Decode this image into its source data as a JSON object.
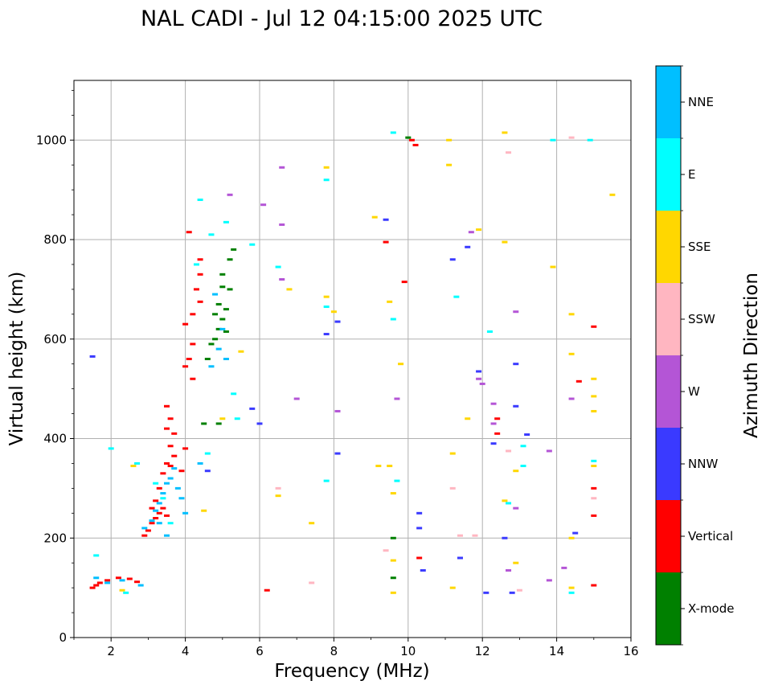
{
  "chart_data": {
    "type": "scatter",
    "title": "NAL CADI - Jul 12 04:15:00 2025 UTC",
    "xlabel": "Frequency (MHz)",
    "ylabel": "Virtual height (km)",
    "xlim": [
      1,
      16
    ],
    "ylim": [
      0,
      1120
    ],
    "xticks": [
      2,
      4,
      6,
      8,
      10,
      12,
      14,
      16
    ],
    "yticks": [
      0,
      200,
      400,
      600,
      800,
      1000
    ],
    "grid": true,
    "colorbar": {
      "label": "Azimuth Direction",
      "categories": [
        {
          "name": "X-mode",
          "color": "#008000"
        },
        {
          "name": "Vertical",
          "color": "#ff0000"
        },
        {
          "name": "NNW",
          "color": "#3a3aff"
        },
        {
          "name": "W",
          "color": "#b455d6"
        },
        {
          "name": "SSW",
          "color": "#ffb6c1"
        },
        {
          "name": "SSE",
          "color": "#ffd700"
        },
        {
          "name": "E",
          "color": "#00ffff"
        },
        {
          "name": "NNE",
          "color": "#00bfff"
        }
      ]
    },
    "series": [
      {
        "name": "Vertical",
        "points": [
          [
            1.5,
            100
          ],
          [
            1.6,
            105
          ],
          [
            1.7,
            110
          ],
          [
            1.9,
            115
          ],
          [
            2.2,
            120
          ],
          [
            2.5,
            118
          ],
          [
            2.7,
            112
          ],
          [
            2.9,
            205
          ],
          [
            3.0,
            215
          ],
          [
            3.1,
            230
          ],
          [
            3.2,
            240
          ],
          [
            3.3,
            250
          ],
          [
            3.4,
            260
          ],
          [
            3.5,
            245
          ],
          [
            3.1,
            260
          ],
          [
            3.2,
            275
          ],
          [
            3.3,
            300
          ],
          [
            3.4,
            330
          ],
          [
            3.5,
            350
          ],
          [
            3.6,
            345
          ],
          [
            3.7,
            365
          ],
          [
            3.6,
            385
          ],
          [
            3.7,
            410
          ],
          [
            3.5,
            420
          ],
          [
            3.6,
            440
          ],
          [
            3.5,
            465
          ],
          [
            3.9,
            335
          ],
          [
            4.0,
            380
          ],
          [
            4.2,
            520
          ],
          [
            4.0,
            545
          ],
          [
            4.1,
            560
          ],
          [
            4.2,
            590
          ],
          [
            4.0,
            630
          ],
          [
            4.2,
            650
          ],
          [
            4.4,
            675
          ],
          [
            4.3,
            700
          ],
          [
            4.4,
            730
          ],
          [
            4.4,
            760
          ],
          [
            4.1,
            815
          ],
          [
            6.2,
            95
          ],
          [
            9.4,
            795
          ],
          [
            9.9,
            715
          ],
          [
            10.1,
            1000
          ],
          [
            10.2,
            990
          ],
          [
            14.6,
            515
          ],
          [
            15.0,
            625
          ],
          [
            15.0,
            300
          ],
          [
            15.0,
            245
          ],
          [
            15.0,
            105
          ],
          [
            12.4,
            410
          ],
          [
            12.4,
            440
          ],
          [
            10.3,
            160
          ]
        ]
      },
      {
        "name": "X-mode",
        "points": [
          [
            4.5,
            430
          ],
          [
            4.9,
            430
          ],
          [
            4.6,
            560
          ],
          [
            4.7,
            590
          ],
          [
            4.8,
            600
          ],
          [
            4.9,
            620
          ],
          [
            5.0,
            640
          ],
          [
            5.1,
            660
          ],
          [
            5.2,
            700
          ],
          [
            5.0,
            705
          ],
          [
            5.2,
            760
          ],
          [
            5.3,
            780
          ],
          [
            4.8,
            650
          ],
          [
            4.9,
            670
          ],
          [
            5.1,
            615
          ],
          [
            10.0,
            1005
          ],
          [
            9.6,
            200
          ],
          [
            9.6,
            120
          ],
          [
            5.0,
            730
          ]
        ]
      },
      {
        "name": "NNW",
        "points": [
          [
            1.5,
            565
          ],
          [
            4.6,
            335
          ],
          [
            5.8,
            460
          ],
          [
            6.0,
            430
          ],
          [
            7.8,
            610
          ],
          [
            8.1,
            635
          ],
          [
            8.1,
            370
          ],
          [
            9.4,
            840
          ],
          [
            10.3,
            250
          ],
          [
            10.3,
            220
          ],
          [
            10.4,
            135
          ],
          [
            11.2,
            760
          ],
          [
            11.6,
            785
          ],
          [
            11.9,
            535
          ],
          [
            12.3,
            390
          ],
          [
            12.6,
            200
          ],
          [
            12.9,
            550
          ],
          [
            12.9,
            465
          ],
          [
            13.2,
            408
          ],
          [
            12.1,
            90
          ],
          [
            12.8,
            90
          ],
          [
            11.4,
            160
          ],
          [
            14.5,
            210
          ]
        ]
      },
      {
        "name": "W",
        "points": [
          [
            5.2,
            890
          ],
          [
            6.6,
            945
          ],
          [
            6.1,
            870
          ],
          [
            6.6,
            830
          ],
          [
            7.0,
            480
          ],
          [
            8.1,
            455
          ],
          [
            9.7,
            480
          ],
          [
            11.7,
            815
          ],
          [
            12.0,
            510
          ],
          [
            12.3,
            470
          ],
          [
            12.3,
            430
          ],
          [
            12.9,
            655
          ],
          [
            12.9,
            260
          ],
          [
            12.7,
            135
          ],
          [
            13.8,
            375
          ],
          [
            13.8,
            115
          ],
          [
            14.2,
            140
          ],
          [
            14.4,
            480
          ],
          [
            11.9,
            520
          ],
          [
            6.6,
            720
          ]
        ]
      },
      {
        "name": "SSW",
        "points": [
          [
            6.5,
            300
          ],
          [
            7.4,
            110
          ],
          [
            9.4,
            175
          ],
          [
            11.2,
            300
          ],
          [
            11.4,
            205
          ],
          [
            12.7,
            375
          ],
          [
            12.7,
            975
          ],
          [
            14.4,
            1005
          ],
          [
            15.0,
            280
          ],
          [
            13.0,
            95
          ],
          [
            11.8,
            205
          ]
        ]
      },
      {
        "name": "SSE",
        "points": [
          [
            2.3,
            95
          ],
          [
            2.6,
            345
          ],
          [
            4.5,
            255
          ],
          [
            5.0,
            440
          ],
          [
            5.5,
            575
          ],
          [
            6.5,
            285
          ],
          [
            6.8,
            700
          ],
          [
            7.4,
            230
          ],
          [
            7.8,
            945
          ],
          [
            7.8,
            685
          ],
          [
            8.0,
            655
          ],
          [
            9.1,
            845
          ],
          [
            9.2,
            345
          ],
          [
            9.5,
            345
          ],
          [
            9.5,
            675
          ],
          [
            9.6,
            290
          ],
          [
            9.6,
            155
          ],
          [
            9.6,
            90
          ],
          [
            9.8,
            550
          ],
          [
            11.1,
            950
          ],
          [
            11.1,
            1000
          ],
          [
            11.2,
            100
          ],
          [
            11.2,
            370
          ],
          [
            11.6,
            440
          ],
          [
            11.9,
            820
          ],
          [
            12.6,
            795
          ],
          [
            12.6,
            1015
          ],
          [
            12.6,
            275
          ],
          [
            12.9,
            335
          ],
          [
            12.9,
            150
          ],
          [
            13.9,
            745
          ],
          [
            14.4,
            650
          ],
          [
            14.4,
            570
          ],
          [
            14.4,
            200
          ],
          [
            14.4,
            100
          ],
          [
            15.0,
            520
          ],
          [
            15.0,
            485
          ],
          [
            15.0,
            455
          ],
          [
            15.0,
            345
          ],
          [
            15.5,
            890
          ]
        ]
      },
      {
        "name": "E",
        "points": [
          [
            2.0,
            380
          ],
          [
            2.7,
            350
          ],
          [
            3.2,
            310
          ],
          [
            3.4,
            280
          ],
          [
            3.6,
            230
          ],
          [
            4.3,
            750
          ],
          [
            4.4,
            880
          ],
          [
            4.6,
            370
          ],
          [
            4.7,
            810
          ],
          [
            5.1,
            835
          ],
          [
            5.3,
            490
          ],
          [
            5.4,
            440
          ],
          [
            5.8,
            790
          ],
          [
            6.5,
            745
          ],
          [
            7.8,
            920
          ],
          [
            7.8,
            665
          ],
          [
            7.8,
            315
          ],
          [
            9.6,
            1015
          ],
          [
            9.6,
            640
          ],
          [
            9.7,
            315
          ],
          [
            12.2,
            615
          ],
          [
            12.7,
            270
          ],
          [
            13.1,
            385
          ],
          [
            13.1,
            345
          ],
          [
            13.9,
            1000
          ],
          [
            14.4,
            90
          ],
          [
            14.9,
            1000
          ],
          [
            15.0,
            355
          ],
          [
            11.3,
            685
          ],
          [
            1.6,
            165
          ],
          [
            2.4,
            90
          ]
        ]
      },
      {
        "name": "NNE",
        "points": [
          [
            1.6,
            120
          ],
          [
            1.9,
            110
          ],
          [
            2.3,
            115
          ],
          [
            2.8,
            105
          ],
          [
            2.9,
            220
          ],
          [
            3.1,
            235
          ],
          [
            3.2,
            255
          ],
          [
            3.3,
            270
          ],
          [
            3.4,
            290
          ],
          [
            3.5,
            310
          ],
          [
            3.6,
            320
          ],
          [
            3.7,
            340
          ],
          [
            3.8,
            300
          ],
          [
            3.9,
            280
          ],
          [
            4.0,
            250
          ],
          [
            3.3,
            230
          ],
          [
            3.5,
            205
          ],
          [
            4.4,
            350
          ],
          [
            4.7,
            545
          ],
          [
            4.9,
            580
          ],
          [
            5.0,
            620
          ],
          [
            5.1,
            560
          ],
          [
            4.8,
            690
          ]
        ]
      }
    ]
  }
}
